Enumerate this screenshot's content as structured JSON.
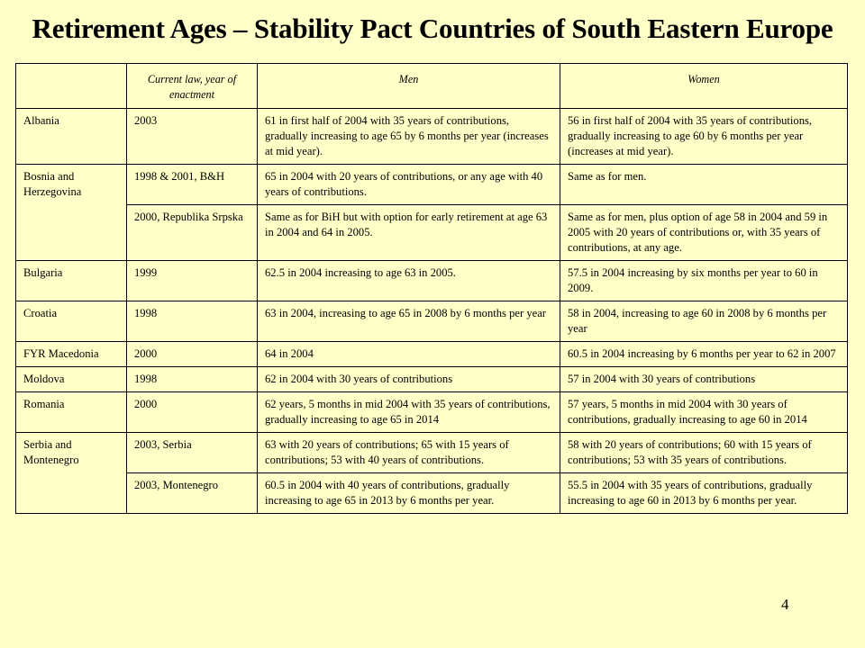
{
  "title": "Retirement Ages – Stability Pact Countries of South Eastern Europe",
  "page_number": "4",
  "table": {
    "headers": [
      "",
      "Current law, year of enactment",
      "Men",
      "Women"
    ],
    "rows": [
      {
        "country": "Albania",
        "law": "2003",
        "men": "61 in first half of 2004 with 35 years of contributions, gradually increasing to age 65 by 6 months per year (increases at mid year).",
        "women": "56 in first half of 2004 with 35 years of contributions, gradually increasing to age 60 by 6 months per year (increases at mid year)."
      },
      {
        "country": "Bosnia and Herzegovina",
        "law": "1998 & 2001, B&H",
        "men": "65 in 2004 with 20 years of contributions, or any age with 40 years of contributions.",
        "women": "Same as for men."
      },
      {
        "country": "",
        "law": "2000, Republika Srpska",
        "men": "Same as for BiH but with option for early retirement at age 63 in 2004 and 64 in 2005.",
        "women": "Same as for men, plus option of age 58 in 2004 and 59 in 2005 with 20 years of contributions or, with 35 years of contributions, at any age."
      },
      {
        "country": "Bulgaria",
        "law": "1999",
        "men": "62.5 in 2004 increasing to age 63 in 2005.",
        "women": "57.5 in 2004 increasing by six months per year to 60 in 2009."
      },
      {
        "country": "Croatia",
        "law": "1998",
        "men": "63 in 2004, increasing to age 65 in 2008 by 6 months per year",
        "women": "58 in 2004, increasing to age 60 in 2008 by 6 months per year"
      },
      {
        "country": "FYR Macedonia",
        "law": "2000",
        "men": "64 in 2004",
        "women": "60.5 in 2004 increasing by 6 months per year to 62 in 2007"
      },
      {
        "country": "Moldova",
        "law": "1998",
        "men": "62 in 2004 with 30 years of contributions",
        "women": "57 in 2004 with 30 years of contributions"
      },
      {
        "country": "Romania",
        "law": "2000",
        "men": "62 years, 5 months in mid 2004 with 35 years of contributions, gradually increasing to age 65 in 2014",
        "women": "57 years, 5 months in mid 2004 with 30 years of contributions, gradually increasing to age 60 in 2014"
      },
      {
        "country": "Serbia and Montenegro",
        "law": "2003, Serbia",
        "men": "63 with 20 years of contributions; 65 with 15 years of contributions; 53 with 40 years of contributions.",
        "women": "58 with 20 years of contributions; 60 with 15 years of contributions; 53 with 35 years of contributions."
      },
      {
        "country": "",
        "law": "2003, Montenegro",
        "men": "60.5 in 2004 with 40 years of contributions, gradually increasing to age 65 in 2013 by 6 months per year.",
        "women": "55.5 in 2004 with 35 years of contributions, gradually increasing to age 60 in 2013 by 6 months per year."
      }
    ]
  }
}
